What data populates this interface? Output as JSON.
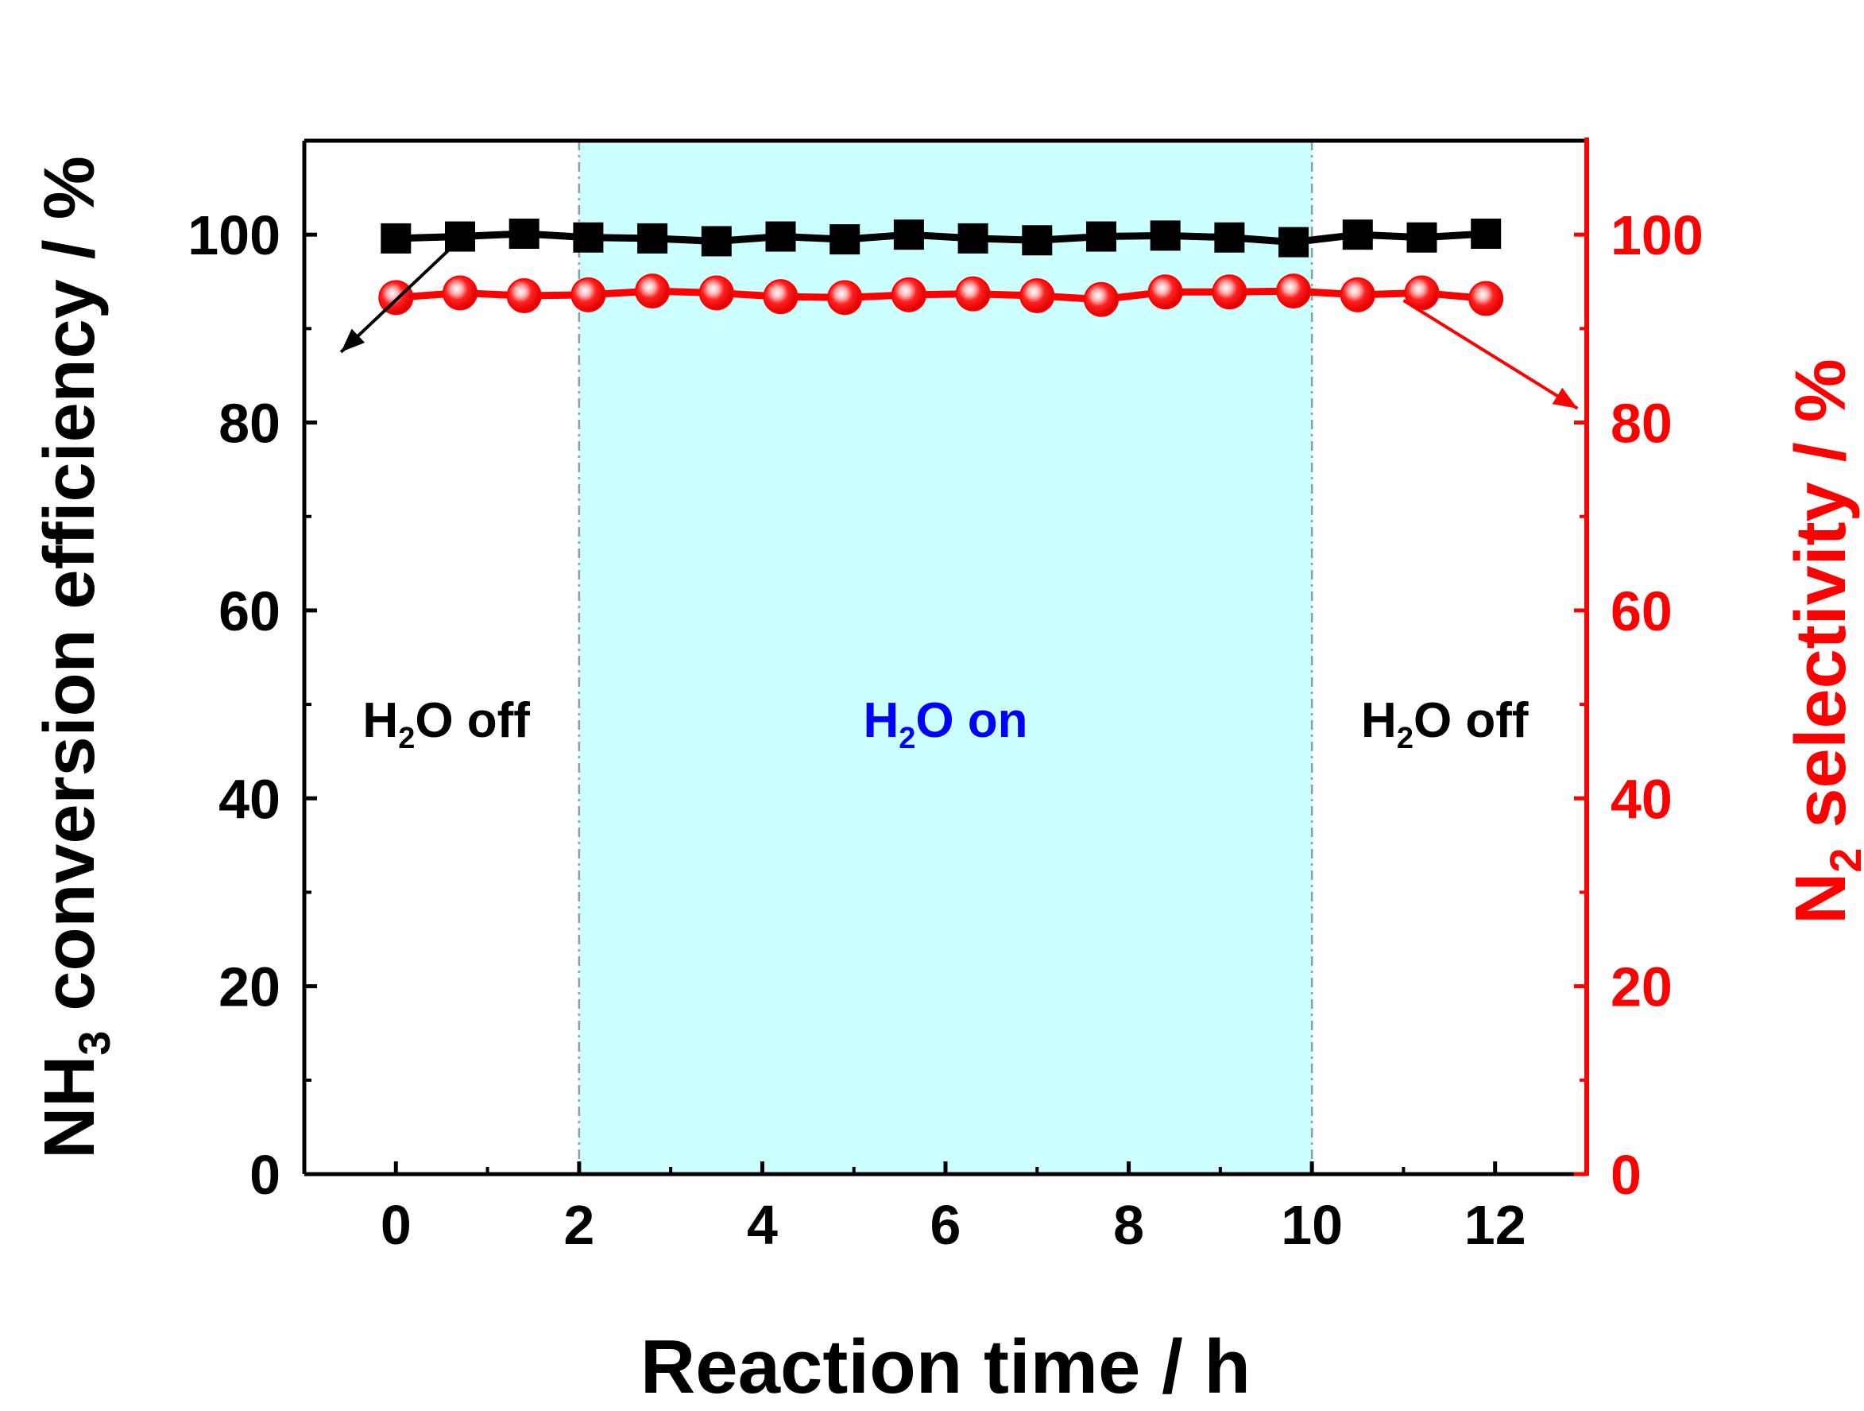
{
  "chart_data": {
    "type": "line",
    "xlabel": "Reaction time / h",
    "ylabel": {
      "main": "NH",
      "sub": "3",
      "rest": " conversion efficiency / %"
    },
    "y2label": {
      "main": "N",
      "sub": "2",
      "rest": " selectivity / %"
    },
    "xlim": [
      -1,
      13
    ],
    "ylim": [
      0,
      110
    ],
    "y2lim": [
      0,
      110
    ],
    "xticks": [
      0,
      2,
      4,
      6,
      8,
      10,
      12
    ],
    "yticks": [
      0,
      20,
      40,
      60,
      80,
      100
    ],
    "y2ticks": [
      0,
      20,
      40,
      60,
      80,
      100
    ],
    "grid": false,
    "shaded_region": {
      "x_start": 2,
      "x_end": 10,
      "color": "#ccffff"
    },
    "annotations": [
      {
        "id": "off-left",
        "main": "H",
        "sub": "2",
        "rest": "O off",
        "x": 0.55,
        "y": 45,
        "color": "#000000"
      },
      {
        "id": "on",
        "main": "H",
        "sub": "2",
        "rest": "O on",
        "x": 6.0,
        "y": 45,
        "color": "#0000ff"
      },
      {
        "id": "off-right",
        "main": "H",
        "sub": "2",
        "rest": "O off",
        "x": 11.45,
        "y": 45,
        "color": "#000000"
      }
    ],
    "series": [
      {
        "axis": "left",
        "color": "#000000",
        "marker": "square",
        "x": [
          0,
          0.7,
          1.4,
          2.1,
          2.8,
          3.5,
          4.2,
          4.9,
          5.6,
          6.3,
          7.0,
          7.7,
          8.4,
          9.1,
          9.8,
          10.5,
          11.2,
          11.9
        ],
        "values": [
          99.6,
          99.8,
          100.1,
          99.7,
          99.6,
          99.3,
          99.8,
          99.5,
          100.0,
          99.6,
          99.4,
          99.8,
          99.9,
          99.7,
          99.2,
          100.0,
          99.7,
          100.1
        ]
      },
      {
        "axis": "right",
        "color": "#ff0000",
        "marker": "circle",
        "x": [
          0,
          0.7,
          1.4,
          2.1,
          2.8,
          3.5,
          4.2,
          4.9,
          5.6,
          6.3,
          7.0,
          7.7,
          8.4,
          9.1,
          9.8,
          10.5,
          11.2,
          11.9
        ],
        "values": [
          93.3,
          93.8,
          93.5,
          93.6,
          94.0,
          93.8,
          93.4,
          93.3,
          93.6,
          93.7,
          93.5,
          93.1,
          93.9,
          93.9,
          94.0,
          93.6,
          93.8,
          93.2
        ]
      }
    ],
    "arrows": [
      {
        "from": [
          0.7,
          99.5
        ],
        "to": [
          -0.6,
          87.5
        ],
        "color": "#000000",
        "axis": "left"
      },
      {
        "from": [
          11.0,
          93.0
        ],
        "to": [
          12.9,
          81.5
        ],
        "color": "#ff0000",
        "axis": "left"
      }
    ]
  }
}
